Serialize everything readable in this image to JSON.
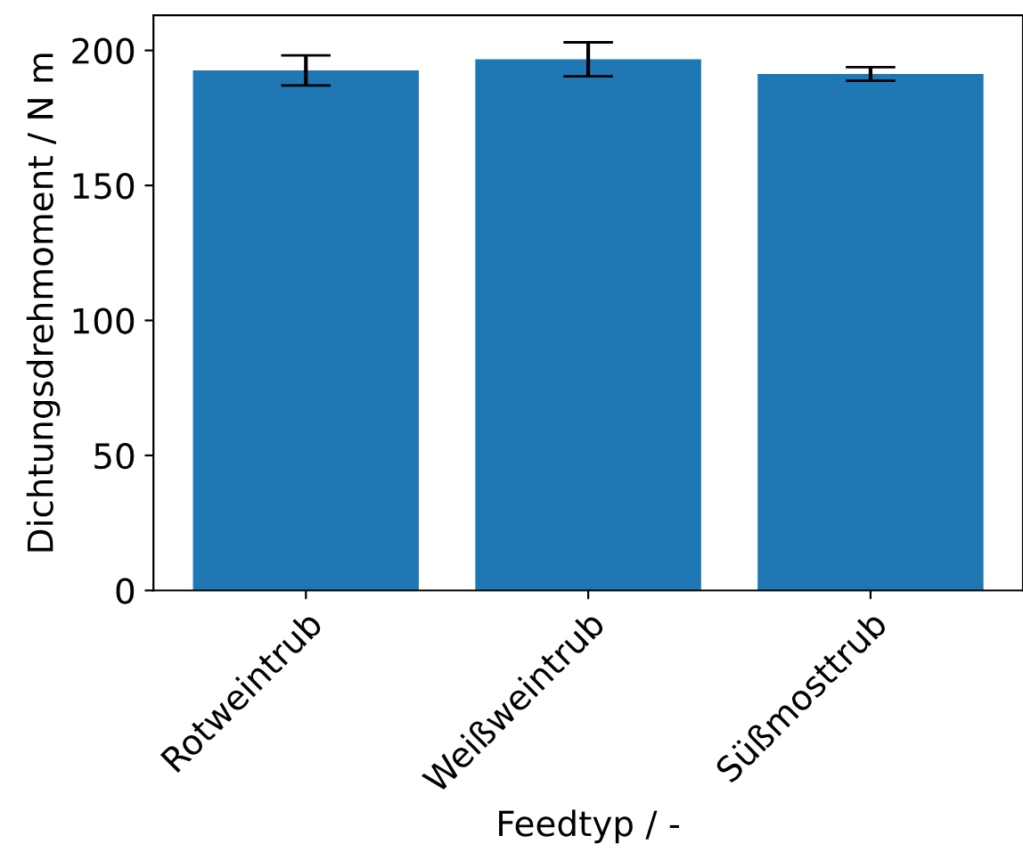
{
  "chart_data": {
    "type": "bar",
    "xlabel": "Feedtyp / -",
    "ylabel": "Dichtungsdrehmoment / N m",
    "categories": [
      "Rotweintrub",
      "Weißweintrub",
      "Süßmosttrub"
    ],
    "values": [
      192.6,
      196.7,
      191.3
    ],
    "errors": [
      5.6,
      6.3,
      2.5
    ],
    "color": "#1f77b4",
    "ylim": [
      0,
      213
    ],
    "yticks": [
      0,
      50,
      100,
      150,
      200
    ],
    "grid": false,
    "legend": false
  }
}
